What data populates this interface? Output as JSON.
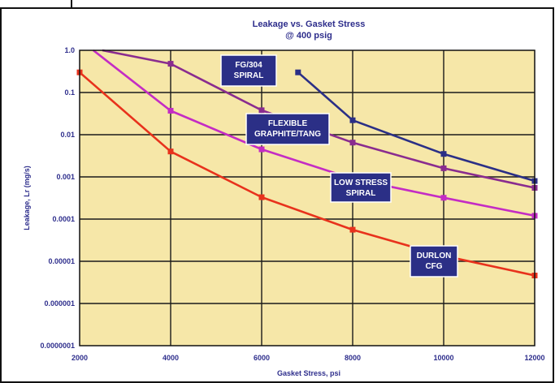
{
  "chart_data": {
    "type": "line",
    "title": "Leakage vs. Gasket Stress",
    "subtitle": "@ 400 psig",
    "xlabel": "Gasket Stress, psi",
    "ylabel": "Leakage, Lr (mg/s)",
    "x_ticks": [
      "2000",
      "4000",
      "6000",
      "8000",
      "10000",
      "12000"
    ],
    "y_ticks": [
      "1.0",
      "0.1",
      "0.01",
      "0.001",
      "0.0001",
      "0.00001",
      "0.000001",
      "0.0000001"
    ],
    "xlim": [
      2000,
      12000
    ],
    "ylim": [
      1e-07,
      1.0
    ],
    "y_scale": "log",
    "grid": true,
    "background_color": "#f6e7a8",
    "series": [
      {
        "name": "FG/304 SPIRAL",
        "color": "#2b2f86",
        "x": [
          6800,
          8000,
          10000,
          12000
        ],
        "y": [
          0.3,
          0.022,
          0.0035,
          0.0008
        ]
      },
      {
        "name": "FLEXIBLE GRAPHITE/TANG",
        "color": "#8a2c8f",
        "x": [
          2500,
          4000,
          6000,
          8000,
          10000,
          12000
        ],
        "y": [
          1.0,
          0.48,
          0.038,
          0.0065,
          0.0016,
          0.00055
        ]
      },
      {
        "name": "LOW STRESS SPIRAL",
        "color": "#c42cc4",
        "x": [
          2300,
          4000,
          6000,
          8000,
          10000,
          12000
        ],
        "y": [
          1.0,
          0.037,
          0.0045,
          0.0009,
          0.00032,
          0.00012
        ]
      },
      {
        "name": "DURLON CFG",
        "color": "#e8321c",
        "x": [
          2000,
          4000,
          6000,
          8000,
          10000,
          12000
        ],
        "y": [
          0.3,
          0.004,
          0.00033,
          5.6e-05,
          1.35e-05,
          4.6e-06
        ]
      }
    ],
    "annotations": [
      {
        "text": [
          "FG/304",
          "SPIRAL"
        ]
      },
      {
        "text": [
          "FLEXIBLE",
          "GRAPHITE/TANG"
        ]
      },
      {
        "text": [
          "LOW STRESS",
          "SPIRAL"
        ]
      },
      {
        "text": [
          "DURLON",
          "CFG"
        ]
      }
    ]
  }
}
